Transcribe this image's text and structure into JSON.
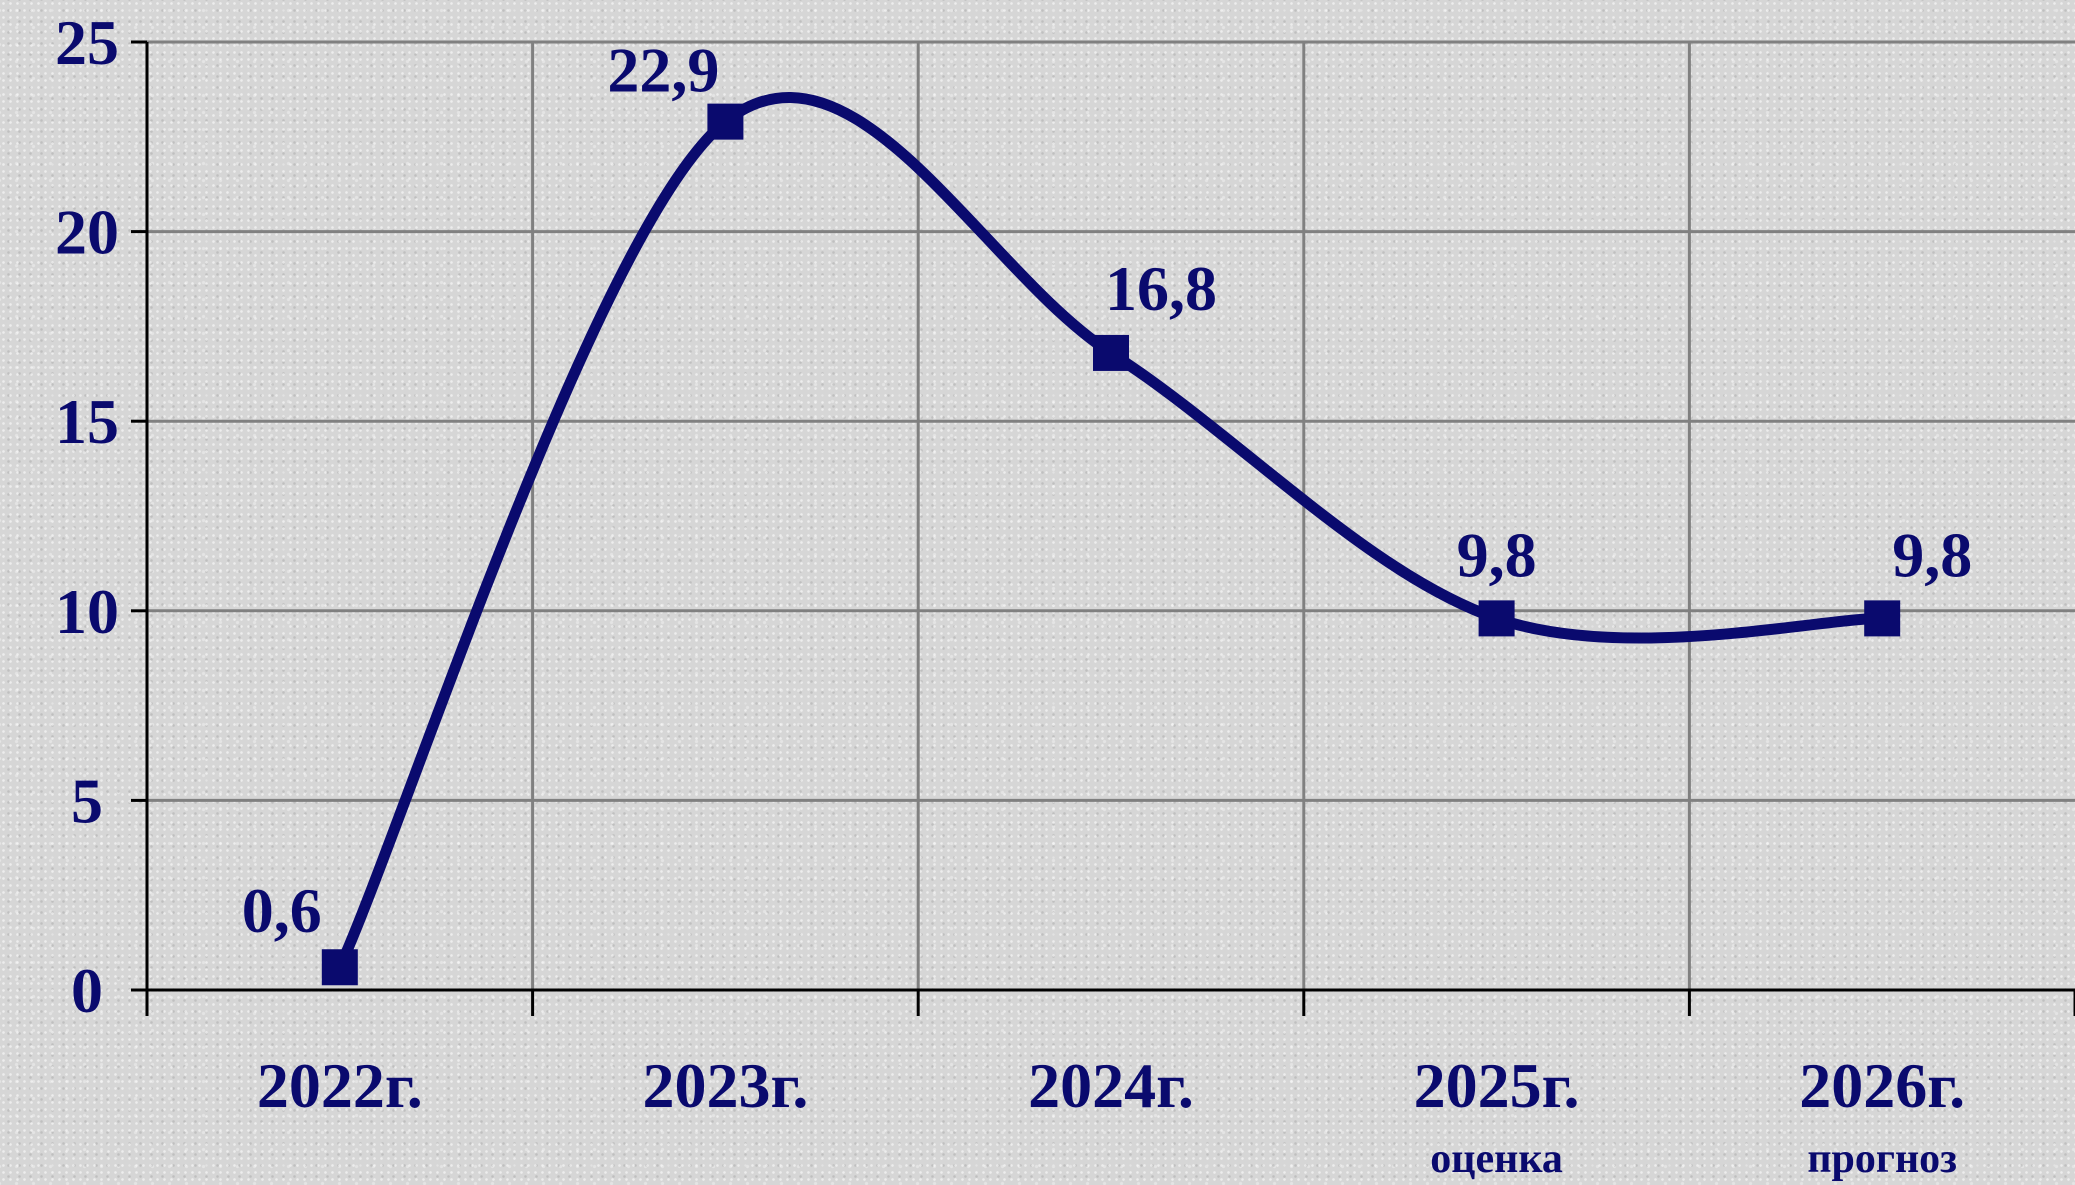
{
  "colors": {
    "series": "#0a0a6e",
    "text": "#0a0a6e",
    "grid": "#808080",
    "axis": "#000000"
  },
  "chart_data": {
    "type": "line",
    "smooth": true,
    "marker": "square",
    "grid": true,
    "categories": [
      "2022г.",
      "2023г.",
      "2024г.",
      "2025г.",
      "2026г."
    ],
    "category_notes": [
      "",
      "",
      "",
      "оценка",
      "прогноз"
    ],
    "series": [
      {
        "values": [
          0.6,
          22.9,
          16.8,
          9.8,
          9.8
        ],
        "labels": [
          "0,6",
          "22,9",
          "16,8",
          "9,8",
          "9,8"
        ]
      }
    ],
    "ylim": [
      0,
      25
    ],
    "yticks": [
      0,
      5,
      10,
      15,
      20,
      25
    ],
    "title": "",
    "xlabel": "",
    "ylabel": ""
  }
}
